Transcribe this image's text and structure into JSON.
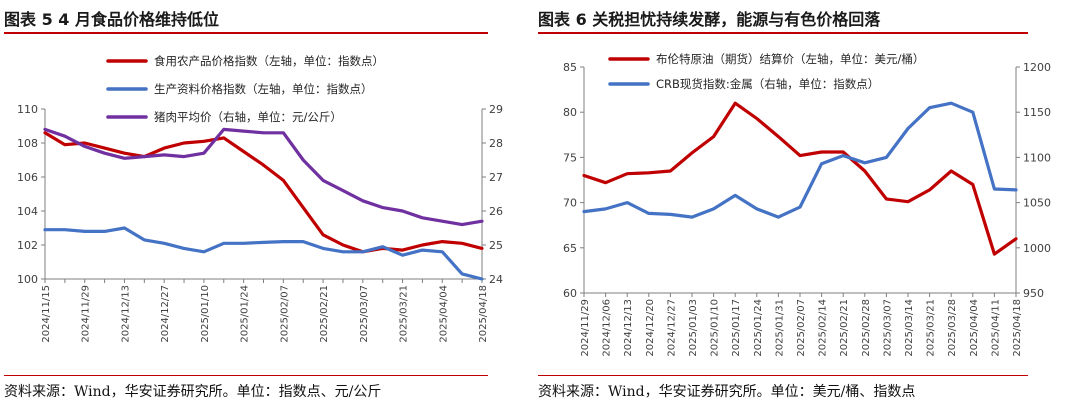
{
  "left": {
    "title": "图表 5 4 月食品价格维持低位",
    "source": "资料来源：Wind，华安证券研究所。单位：指数点、元/公斤"
  },
  "right": {
    "title": "图表 6 关税担忧持续发酵，能源与有色价格回落",
    "source": "资料来源：Wind，华安证券研究所。单位：美元/桶、指数点"
  },
  "chart_data": [
    {
      "type": "line",
      "x": [
        "2024/11/15",
        "2024/11/22",
        "2024/11/29",
        "2024/12/06",
        "2024/12/13",
        "2024/12/20",
        "2024/12/27",
        "2025/01/03",
        "2025/01/10",
        "2025/01/17",
        "2025/01/24",
        "2025/01/31",
        "2025/02/07",
        "2025/02/14",
        "2025/02/21",
        "2025/02/28",
        "2025/03/07",
        "2025/03/14",
        "2025/03/21",
        "2025/03/28",
        "2025/04/04",
        "2025/04/11",
        "2025/04/18"
      ],
      "x_tick_labels": [
        "2024/11/15",
        "2024/11/29",
        "2024/12/13",
        "2024/12/27",
        "2025/01/10",
        "2025/01/24",
        "2025/02/07",
        "2025/02/21",
        "2025/03/07",
        "2025/03/21",
        "2025/04/04",
        "2025/04/18"
      ],
      "series": [
        {
          "name": "食用农产品价格指数（左轴，单位：指数点）",
          "axis": "left",
          "color": "#c00000",
          "values": [
            108.6,
            107.9,
            108.0,
            107.7,
            107.4,
            107.2,
            107.7,
            108.0,
            108.1,
            108.3,
            107.5,
            106.7,
            105.8,
            104.2,
            102.6,
            102.0,
            101.6,
            101.8,
            101.7,
            102.0,
            102.2,
            102.1,
            101.8
          ]
        },
        {
          "name": "生产资料价格指数（左轴，单位：指数点）",
          "axis": "left",
          "color": "#4472c4",
          "values": [
            102.9,
            102.9,
            102.8,
            102.8,
            103.0,
            102.3,
            102.1,
            101.8,
            101.6,
            102.1,
            102.1,
            102.15,
            102.2,
            102.2,
            101.8,
            101.6,
            101.6,
            101.9,
            101.4,
            101.7,
            101.6,
            100.3,
            100.0
          ]
        },
        {
          "name": "猪肉平均价（右轴，单位：元/公斤）",
          "axis": "right",
          "color": "#7030a0",
          "values": [
            28.4,
            28.2,
            27.9,
            27.7,
            27.55,
            27.6,
            27.65,
            27.6,
            27.7,
            28.4,
            28.35,
            28.3,
            28.3,
            27.5,
            26.9,
            26.6,
            26.3,
            26.1,
            26.0,
            25.8,
            25.7,
            25.6,
            25.7
          ]
        }
      ],
      "y_left": {
        "min": 100,
        "max": 110,
        "step": 2
      },
      "y_right": {
        "min": 24,
        "max": 29,
        "step": 1
      },
      "grid": false,
      "legend": "top-left"
    },
    {
      "type": "line",
      "x": [
        "2024/11/29",
        "2024/12/06",
        "2024/12/13",
        "2024/12/20",
        "2024/12/27",
        "2025/01/03",
        "2025/01/10",
        "2025/01/17",
        "2025/01/24",
        "2025/01/31",
        "2025/02/07",
        "2025/02/14",
        "2025/02/21",
        "2025/02/28",
        "2025/03/07",
        "2025/03/14",
        "2025/03/21",
        "2025/03/28",
        "2025/04/04",
        "2025/04/11",
        "2025/04/18"
      ],
      "x_tick_labels": [
        "2024/11/29",
        "2024/12/06",
        "2024/12/13",
        "2024/12/20",
        "2024/12/27",
        "2025/01/03",
        "2025/01/10",
        "2025/01/17",
        "2025/01/24",
        "2025/01/31",
        "2025/02/07",
        "2025/02/14",
        "2025/02/21",
        "2025/02/28",
        "2025/03/07",
        "2025/03/14",
        "2025/03/21",
        "2025/03/28",
        "2025/04/04",
        "2025/04/11",
        "2025/04/18"
      ],
      "series": [
        {
          "name": "布伦特原油（期货）结算价（左轴，单位：美元/桶）",
          "axis": "left",
          "color": "#c00000",
          "values": [
            73.0,
            72.2,
            73.2,
            73.3,
            73.5,
            75.5,
            77.3,
            81.0,
            79.3,
            77.3,
            75.2,
            75.6,
            75.6,
            73.5,
            70.4,
            70.1,
            71.4,
            73.5,
            72.0,
            64.3,
            66.0
          ]
        },
        {
          "name": "CRB现货指数:金属（右轴，单位：指数点）",
          "axis": "right",
          "color": "#4472c4",
          "values": [
            1040,
            1043,
            1050,
            1038,
            1037,
            1034,
            1043,
            1058,
            1043,
            1034,
            1045,
            1093,
            1102,
            1094,
            1100,
            1132,
            1155,
            1160,
            1150,
            1065,
            1064
          ]
        }
      ],
      "y_left": {
        "min": 60,
        "max": 85,
        "step": 5
      },
      "y_right": {
        "min": 950,
        "max": 1200,
        "step": 50
      },
      "grid": false,
      "legend": "top-left"
    }
  ]
}
